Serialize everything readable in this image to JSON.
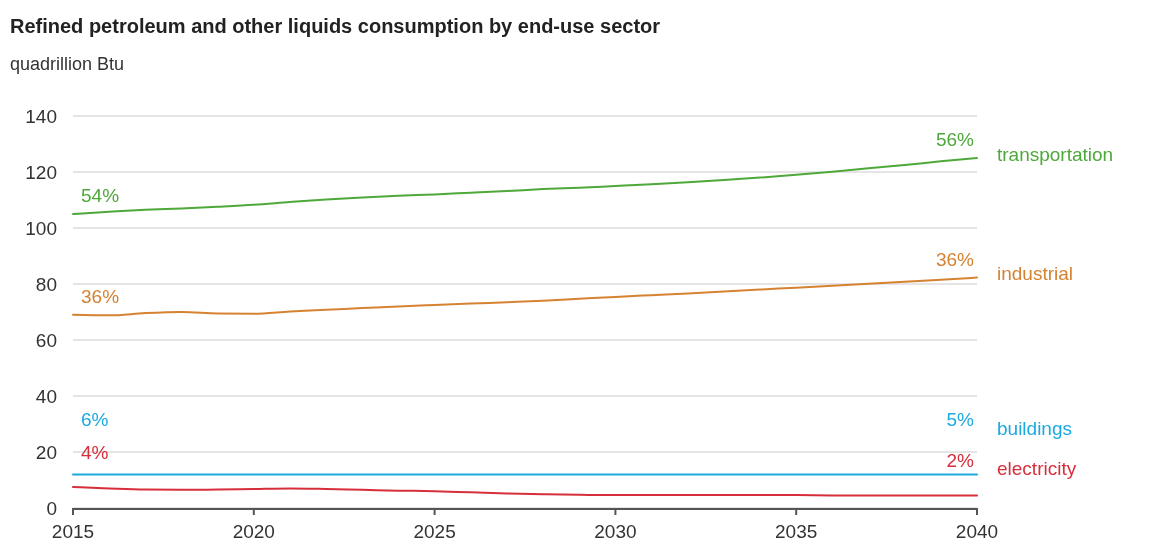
{
  "chart_data": {
    "type": "line",
    "title": "Refined petroleum and other liquids consumption by end-use sector",
    "subtitle": "quadrillion Btu",
    "x": [
      2015,
      2016,
      2017,
      2018,
      2019,
      2020,
      2021,
      2022,
      2023,
      2024,
      2025,
      2026,
      2027,
      2028,
      2029,
      2030,
      2031,
      2032,
      2033,
      2034,
      2035,
      2036,
      2037,
      2038,
      2039,
      2040
    ],
    "series": [
      {
        "name": "transportation",
        "color": "#4ea83a",
        "values": [
          105,
          105.8,
          106.5,
          107,
          107.6,
          108.3,
          109.3,
          110.2,
          110.9,
          111.5,
          112,
          112.6,
          113.2,
          113.9,
          114.4,
          115,
          115.6,
          116.3,
          117.1,
          118,
          119,
          120.1,
          121.3,
          122.5,
          123.8,
          125
        ]
      },
      {
        "name": "industrial",
        "color": "#d58331",
        "values": [
          69,
          68.8,
          69.6,
          70,
          69.5,
          69.4,
          70.2,
          70.8,
          71.4,
          72,
          72.5,
          73,
          73.5,
          74,
          74.7,
          75.4,
          76,
          76.6,
          77.3,
          78,
          78.7,
          79.4,
          80.1,
          80.8,
          81.5,
          82.3
        ]
      },
      {
        "name": "buildings",
        "color": "#1ca9e0",
        "values": [
          12,
          12,
          12,
          12,
          12,
          12,
          12,
          12,
          12,
          12,
          12,
          12,
          12,
          12,
          12,
          12,
          12,
          12,
          12,
          12,
          12,
          12,
          12,
          12,
          12,
          12
        ]
      },
      {
        "name": "electricity",
        "color": "#d62f3b",
        "values": [
          7.5,
          7,
          6.6,
          6.5,
          6.6,
          6.8,
          7,
          6.8,
          6.5,
          6.2,
          6,
          5.6,
          5.2,
          4.9,
          4.7,
          4.6,
          4.6,
          4.6,
          4.6,
          4.6,
          4.6,
          4.5,
          4.5,
          4.5,
          4.5,
          4.5
        ]
      }
    ],
    "annotations": [
      "54%",
      "56%",
      "36%",
      "36%",
      "6%",
      "5%",
      "4%",
      "2%"
    ],
    "xlim": [
      2015,
      2040
    ],
    "xticks": [
      2015,
      2020,
      2025,
      2030,
      2035,
      2040
    ],
    "ylim": [
      0,
      140
    ],
    "yticks": [
      0,
      20,
      40,
      60,
      80,
      100,
      120,
      140
    ],
    "grid": "y",
    "legend": false,
    "marker": "none",
    "line_style": "solid"
  }
}
